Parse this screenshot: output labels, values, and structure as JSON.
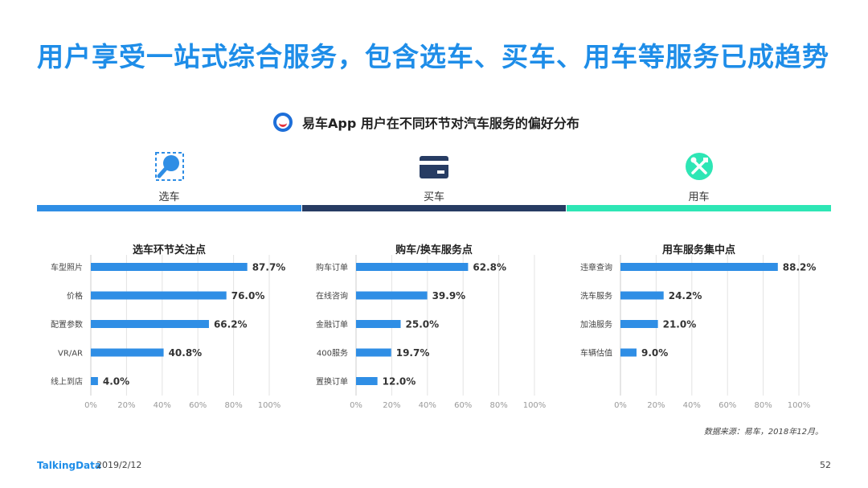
{
  "title": "用户享受一站式综合服务，包含选车、买车、用车等服务已成趋势",
  "subtitle": "易车App  用户在不同环节对汽车服务的偏好分布",
  "sections": [
    {
      "label": "选车",
      "icon": "search-icon",
      "color": "#2f8ee5"
    },
    {
      "label": "买车",
      "icon": "card-icon",
      "color": "#273c63"
    },
    {
      "label": "用车",
      "icon": "tools-icon",
      "color": "#2ee6b5"
    }
  ],
  "chart_data": [
    {
      "type": "bar",
      "orientation": "horizontal",
      "title": "选车环节关注点",
      "categories": [
        "车型照片",
        "价格",
        "配置参数",
        "VR/AR",
        "线上到店"
      ],
      "values": [
        87.7,
        76.0,
        66.2,
        40.8,
        4.0
      ],
      "value_labels": [
        "87.7%",
        "76.0%",
        "66.2%",
        "40.8%",
        "4.0%"
      ],
      "xlim": [
        0,
        100
      ],
      "xticks": [
        "0%",
        "20%",
        "40%",
        "60%",
        "80%",
        "100%"
      ],
      "grid": true,
      "bar_color": "#2f8ee5"
    },
    {
      "type": "bar",
      "orientation": "horizontal",
      "title": "购车/换车服务点",
      "categories": [
        "购车订单",
        "在线咨询",
        "金融订单",
        "400服务",
        "置换订单"
      ],
      "values": [
        62.8,
        39.9,
        25.0,
        19.7,
        12.0
      ],
      "value_labels": [
        "62.8%",
        "39.9%",
        "25.0%",
        "19.7%",
        "12.0%"
      ],
      "xlim": [
        0,
        100
      ],
      "xticks": [
        "0%",
        "20%",
        "40%",
        "60%",
        "80%",
        "100%"
      ],
      "grid": true,
      "bar_color": "#2f8ee5"
    },
    {
      "type": "bar",
      "orientation": "horizontal",
      "title": "用车服务集中点",
      "categories": [
        "违章查询",
        "洗车服务",
        "加油服务",
        "车辆估值"
      ],
      "values": [
        88.2,
        24.2,
        21.0,
        9.0
      ],
      "value_labels": [
        "88.2%",
        "24.2%",
        "21.0%",
        "9.0%"
      ],
      "xlim": [
        0,
        100
      ],
      "xticks": [
        "0%",
        "20%",
        "40%",
        "60%",
        "80%",
        "100%"
      ],
      "grid": true,
      "bar_color": "#2f8ee5"
    }
  ],
  "source": "数据来源：易车，2018年12月。",
  "footer": {
    "brand": "TalkingData",
    "date": "2019/2/12",
    "page": "52"
  }
}
